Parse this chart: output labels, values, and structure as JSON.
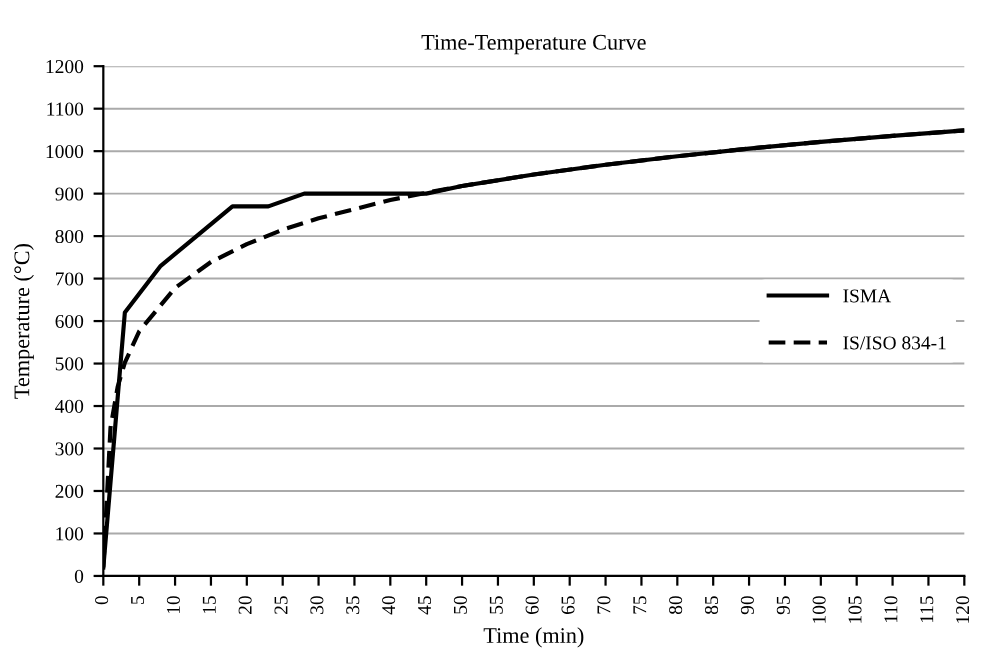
{
  "chart_data": {
    "type": "line",
    "title": "Time-Temperature Curve",
    "xlabel": "Time (min)",
    "ylabel": "Temperature (°C)",
    "series": [
      {
        "name": "ISMA",
        "color": "#000000",
        "line_style": "solid",
        "x": [
          0,
          3,
          8,
          13,
          18,
          23,
          28,
          45,
          50,
          60,
          70,
          80,
          90,
          100,
          110,
          120
        ],
        "values": [
          20,
          620,
          730,
          800,
          870,
          870,
          900,
          900,
          918,
          945,
          968,
          988,
          1006,
          1022,
          1036,
          1049
        ]
      },
      {
        "name": "IS/ISO 834-1",
        "color": "#000000",
        "line_style": "dashed",
        "x": [
          0,
          1,
          2,
          3,
          5,
          10,
          15,
          20,
          25,
          30,
          40,
          45,
          50,
          60,
          70,
          80,
          90,
          100,
          110,
          120
        ],
        "values": [
          20,
          349,
          445,
          502,
          576,
          678,
          739,
          781,
          815,
          842,
          885,
          902,
          918,
          945,
          968,
          988,
          1006,
          1022,
          1036,
          1049
        ]
      }
    ],
    "xlim": [
      0,
      120
    ],
    "xticks": [
      0,
      5,
      10,
      15,
      20,
      25,
      30,
      35,
      40,
      45,
      50,
      55,
      60,
      65,
      70,
      75,
      80,
      85,
      90,
      95,
      100,
      105,
      110,
      115,
      120
    ],
    "ylim": [
      0,
      1200
    ],
    "yticks": [
      0,
      100,
      200,
      300,
      400,
      500,
      600,
      700,
      800,
      900,
      1000,
      1100,
      1200
    ],
    "grid": "y",
    "legend": "right",
    "marker": "none"
  }
}
